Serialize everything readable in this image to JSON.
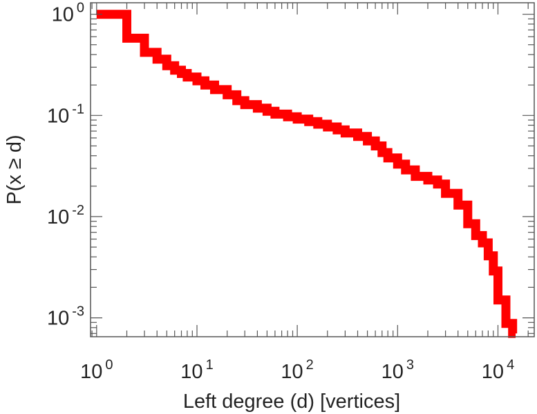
{
  "chart_data": {
    "type": "line",
    "scale": "log-log",
    "step_style": "staircase",
    "title": "",
    "xlabel": "Left degree (d) [vertices]",
    "ylabel": "P(x ≥ d)",
    "xlim": [
      0.87,
      23000
    ],
    "ylim": [
      0.00065,
      1.3
    ],
    "grid": false,
    "x_major_ticks": [
      {
        "value": 1,
        "base": "10",
        "exp": "0"
      },
      {
        "value": 10,
        "base": "10",
        "exp": "1"
      },
      {
        "value": 100,
        "base": "10",
        "exp": "2"
      },
      {
        "value": 1000,
        "base": "10",
        "exp": "3"
      },
      {
        "value": 10000,
        "base": "10",
        "exp": "4"
      }
    ],
    "y_major_ticks": [
      {
        "value": 1,
        "base": "10",
        "exp": "0"
      },
      {
        "value": 0.1,
        "base": "10",
        "exp": "-1"
      },
      {
        "value": 0.01,
        "base": "10",
        "exp": "-2"
      },
      {
        "value": 0.001,
        "base": "10",
        "exp": "-3"
      }
    ],
    "series": [
      {
        "name": "P(x ≥ d)",
        "color": "#ff0000",
        "x": [
          1,
          2,
          3,
          4,
          5,
          6,
          7,
          8,
          10,
          12,
          15,
          20,
          25,
          30,
          40,
          50,
          60,
          80,
          100,
          130,
          160,
          200,
          250,
          300,
          400,
          500,
          600,
          700,
          800,
          1000,
          1200,
          1500,
          2000,
          2500,
          3000,
          4000,
          5000,
          6000,
          7000,
          8000,
          9000,
          10000,
          12000,
          14000
        ],
        "y": [
          1.0,
          0.58,
          0.42,
          0.36,
          0.31,
          0.28,
          0.26,
          0.24,
          0.22,
          0.2,
          0.18,
          0.16,
          0.14,
          0.128,
          0.118,
          0.11,
          0.103,
          0.097,
          0.092,
          0.087,
          0.082,
          0.077,
          0.072,
          0.067,
          0.062,
          0.056,
          0.05,
          0.043,
          0.038,
          0.033,
          0.029,
          0.025,
          0.023,
          0.021,
          0.017,
          0.013,
          0.0085,
          0.0065,
          0.0055,
          0.0041,
          0.0029,
          0.0015,
          0.00088,
          0.0007
        ]
      }
    ]
  }
}
